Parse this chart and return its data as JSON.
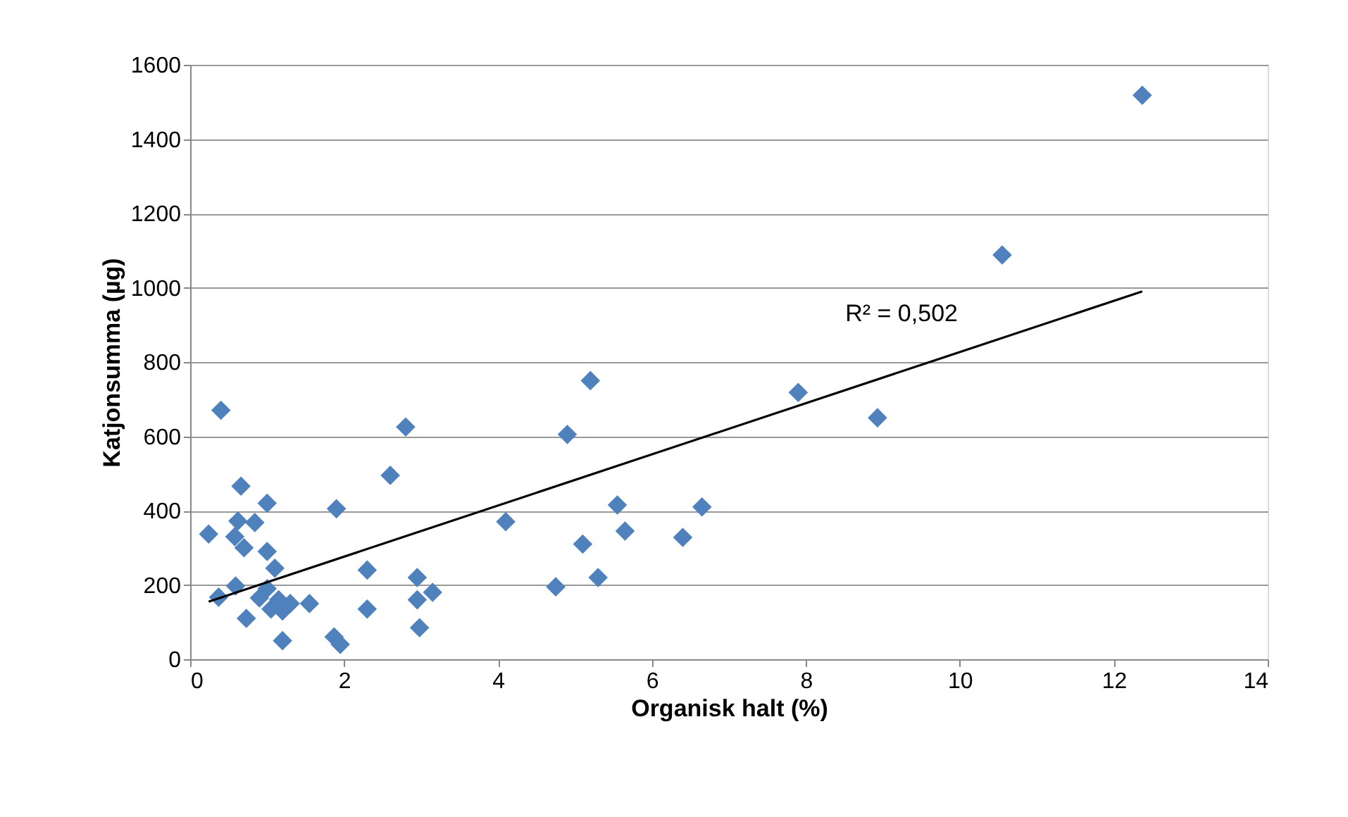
{
  "chart_data": {
    "type": "scatter",
    "xlabel": "Organisk halt (%)",
    "ylabel": "Katjonsumma (µg)",
    "xlim": [
      0,
      14
    ],
    "xticks": [
      0,
      2,
      4,
      6,
      8,
      10,
      12,
      14
    ],
    "ylim": [
      0,
      1600
    ],
    "yticks": [
      0,
      200,
      400,
      600,
      800,
      1000,
      1200,
      1400,
      1600
    ],
    "grid": "y",
    "series": [
      {
        "color": "#4f81bd",
        "marker": "diamond",
        "x": [
          0.24,
          0.4,
          0.37,
          0.59,
          0.66,
          0.62,
          0.58,
          0.7,
          0.84,
          1.0,
          0.73,
          1.0,
          1.1,
          1.0,
          0.9,
          1.15,
          1.2,
          1.05,
          1.2,
          1.3,
          1.55,
          1.9,
          1.87,
          1.95,
          2.3,
          2.3,
          2.6,
          2.8,
          2.95,
          2.95,
          3.15,
          2.98,
          4.1,
          4.75,
          4.9,
          5.2,
          5.1,
          5.3,
          5.55,
          5.65,
          6.4,
          6.65,
          7.9,
          8.93,
          10.55,
          12.37
        ],
        "values": [
          337,
          670,
          167,
          197,
          466,
          372,
          330,
          300,
          368,
          420,
          110,
          290,
          245,
          190,
          165,
          160,
          130,
          135,
          50,
          150,
          150,
          405,
          60,
          40,
          135,
          240,
          495,
          625,
          220,
          160,
          180,
          85,
          370,
          195,
          605,
          750,
          310,
          220,
          415,
          345,
          328,
          410,
          718,
          650,
          1088,
          1518
        ]
      },
      {
        "type": "line",
        "color": "#000000",
        "line_style": "solid",
        "x": [
          0.24,
          12.37
        ],
        "values": [
          155,
          990
        ]
      }
    ],
    "annotations": [
      "R² = 0,502"
    ]
  }
}
